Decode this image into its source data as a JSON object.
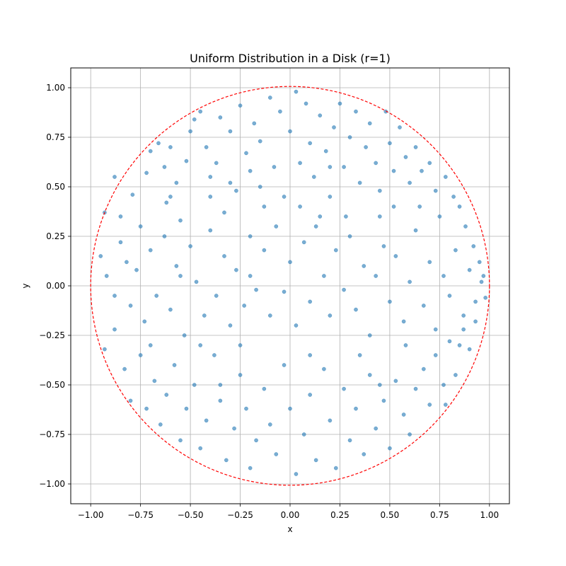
{
  "chart_data": {
    "type": "scatter",
    "title": "Uniform Distribution in a Disk (r=1)",
    "xlabel": "x",
    "ylabel": "y",
    "xlim": [
      -1.1,
      1.1
    ],
    "ylim": [
      -1.1,
      1.1
    ],
    "xticks": [
      -1.0,
      -0.75,
      -0.5,
      -0.25,
      0.0,
      0.25,
      0.5,
      0.75,
      1.0
    ],
    "yticks": [
      -1.0,
      -0.75,
      -0.5,
      -0.25,
      0.0,
      0.25,
      0.5,
      0.75,
      1.0
    ],
    "xtick_labels": [
      "−1.00",
      "−0.75",
      "−0.50",
      "−0.25",
      "0.00",
      "0.25",
      "0.50",
      "0.75",
      "1.00"
    ],
    "ytick_labels": [
      "−1.00",
      "−0.75",
      "−0.50",
      "−0.25",
      "0.00",
      "0.25",
      "0.50",
      "0.75",
      "1.00"
    ],
    "grid": true,
    "circle": {
      "radius": 1,
      "center": [
        0,
        0
      ],
      "style": "dashed",
      "color": "#ff0000"
    },
    "point_color": "#1f77b4",
    "point_alpha": 0.6,
    "series": [
      {
        "points": [
          [
            -0.93,
            0.37
          ],
          [
            -0.88,
            0.55
          ],
          [
            -0.82,
            0.12
          ],
          [
            -0.79,
            0.46
          ],
          [
            -0.75,
            0.3
          ],
          [
            -0.72,
            0.57
          ],
          [
            -0.7,
            0.68
          ],
          [
            -0.66,
            0.72
          ],
          [
            -0.63,
            0.6
          ],
          [
            -0.6,
            0.45
          ],
          [
            -0.57,
            0.52
          ],
          [
            -0.55,
            0.33
          ],
          [
            -0.52,
            0.63
          ],
          [
            -0.5,
            0.78
          ],
          [
            -0.48,
            0.84
          ],
          [
            -0.45,
            0.88
          ],
          [
            -0.42,
            0.7
          ],
          [
            -0.4,
            0.55
          ],
          [
            -0.37,
            0.62
          ],
          [
            -0.35,
            0.85
          ],
          [
            -0.33,
            0.37
          ],
          [
            -0.3,
            0.78
          ],
          [
            -0.27,
            0.48
          ],
          [
            -0.25,
            0.91
          ],
          [
            -0.22,
            0.67
          ],
          [
            -0.2,
            0.58
          ],
          [
            -0.18,
            0.82
          ],
          [
            -0.15,
            0.73
          ],
          [
            -0.13,
            0.4
          ],
          [
            -0.1,
            0.95
          ],
          [
            -0.08,
            0.6
          ],
          [
            -0.05,
            0.88
          ],
          [
            -0.03,
            0.45
          ],
          [
            0.0,
            0.78
          ],
          [
            0.03,
            0.98
          ],
          [
            0.05,
            0.62
          ],
          [
            0.08,
            0.92
          ],
          [
            0.1,
            0.72
          ],
          [
            0.12,
            0.55
          ],
          [
            0.15,
            0.86
          ],
          [
            0.18,
            0.68
          ],
          [
            0.2,
            0.45
          ],
          [
            0.22,
            0.8
          ],
          [
            0.25,
            0.92
          ],
          [
            0.27,
            0.6
          ],
          [
            0.3,
            0.75
          ],
          [
            0.33,
            0.88
          ],
          [
            0.35,
            0.52
          ],
          [
            0.38,
            0.7
          ],
          [
            0.4,
            0.82
          ],
          [
            0.43,
            0.62
          ],
          [
            0.45,
            0.48
          ],
          [
            0.48,
            0.88
          ],
          [
            0.5,
            0.72
          ],
          [
            0.52,
            0.58
          ],
          [
            0.55,
            0.8
          ],
          [
            0.58,
            0.65
          ],
          [
            0.6,
            0.52
          ],
          [
            0.63,
            0.7
          ],
          [
            0.66,
            0.58
          ],
          [
            0.7,
            0.62
          ],
          [
            0.73,
            0.48
          ],
          [
            0.75,
            0.35
          ],
          [
            0.78,
            0.55
          ],
          [
            0.82,
            0.45
          ],
          [
            0.85,
            0.4
          ],
          [
            0.88,
            0.3
          ],
          [
            0.92,
            0.2
          ],
          [
            0.95,
            0.12
          ],
          [
            0.97,
            0.05
          ],
          [
            -0.95,
            0.15
          ],
          [
            -0.92,
            0.05
          ],
          [
            -0.88,
            -0.05
          ],
          [
            -0.85,
            0.22
          ],
          [
            -0.8,
            -0.1
          ],
          [
            -0.77,
            0.08
          ],
          [
            -0.73,
            -0.18
          ],
          [
            -0.7,
            0.18
          ],
          [
            -0.67,
            -0.05
          ],
          [
            -0.63,
            0.25
          ],
          [
            -0.6,
            -0.12
          ],
          [
            -0.57,
            0.1
          ],
          [
            -0.53,
            -0.25
          ],
          [
            -0.5,
            0.2
          ],
          [
            -0.47,
            0.02
          ],
          [
            -0.43,
            -0.15
          ],
          [
            -0.4,
            0.28
          ],
          [
            -0.37,
            -0.05
          ],
          [
            -0.33,
            0.15
          ],
          [
            -0.3,
            -0.2
          ],
          [
            -0.27,
            0.08
          ],
          [
            -0.23,
            -0.1
          ],
          [
            -0.2,
            0.25
          ],
          [
            -0.17,
            -0.02
          ],
          [
            -0.13,
            0.18
          ],
          [
            -0.1,
            -0.15
          ],
          [
            -0.07,
            0.3
          ],
          [
            -0.03,
            -0.03
          ],
          [
            0.0,
            0.12
          ],
          [
            0.03,
            -0.2
          ],
          [
            0.07,
            0.22
          ],
          [
            0.1,
            -0.08
          ],
          [
            0.13,
            0.3
          ],
          [
            0.17,
            0.05
          ],
          [
            0.2,
            -0.15
          ],
          [
            0.23,
            0.18
          ],
          [
            0.27,
            -0.02
          ],
          [
            0.3,
            0.25
          ],
          [
            0.33,
            -0.12
          ],
          [
            0.37,
            0.1
          ],
          [
            0.4,
            -0.25
          ],
          [
            0.43,
            0.05
          ],
          [
            0.47,
            0.2
          ],
          [
            0.5,
            -0.08
          ],
          [
            0.53,
            0.15
          ],
          [
            0.57,
            -0.18
          ],
          [
            0.6,
            0.02
          ],
          [
            0.63,
            0.28
          ],
          [
            0.67,
            -0.1
          ],
          [
            0.7,
            0.12
          ],
          [
            0.73,
            -0.22
          ],
          [
            0.77,
            0.05
          ],
          [
            0.8,
            -0.05
          ],
          [
            0.83,
            0.18
          ],
          [
            0.87,
            -0.15
          ],
          [
            0.9,
            0.08
          ],
          [
            0.93,
            -0.08
          ],
          [
            0.96,
            0.02
          ],
          [
            0.98,
            -0.06
          ],
          [
            0.85,
            -0.3
          ],
          [
            -0.93,
            -0.32
          ],
          [
            -0.88,
            -0.22
          ],
          [
            -0.83,
            -0.42
          ],
          [
            -0.8,
            -0.58
          ],
          [
            -0.75,
            -0.35
          ],
          [
            -0.72,
            -0.62
          ],
          [
            -0.68,
            -0.48
          ],
          [
            -0.65,
            -0.7
          ],
          [
            -0.62,
            -0.55
          ],
          [
            -0.58,
            -0.4
          ],
          [
            -0.55,
            -0.78
          ],
          [
            -0.52,
            -0.62
          ],
          [
            -0.48,
            -0.5
          ],
          [
            -0.45,
            -0.82
          ],
          [
            -0.42,
            -0.68
          ],
          [
            -0.38,
            -0.35
          ],
          [
            -0.35,
            -0.58
          ],
          [
            -0.32,
            -0.88
          ],
          [
            -0.28,
            -0.72
          ],
          [
            -0.25,
            -0.45
          ],
          [
            -0.22,
            -0.62
          ],
          [
            -0.2,
            -0.92
          ],
          [
            -0.17,
            -0.78
          ],
          [
            -0.13,
            -0.52
          ],
          [
            -0.1,
            -0.7
          ],
          [
            -0.07,
            -0.85
          ],
          [
            -0.03,
            -0.4
          ],
          [
            0.0,
            -0.62
          ],
          [
            0.03,
            -0.95
          ],
          [
            0.07,
            -0.75
          ],
          [
            0.1,
            -0.55
          ],
          [
            0.13,
            -0.88
          ],
          [
            0.17,
            -0.42
          ],
          [
            0.2,
            -0.68
          ],
          [
            0.23,
            -0.92
          ],
          [
            0.27,
            -0.52
          ],
          [
            0.3,
            -0.78
          ],
          [
            0.33,
            -0.62
          ],
          [
            0.37,
            -0.85
          ],
          [
            0.4,
            -0.45
          ],
          [
            0.43,
            -0.72
          ],
          [
            0.47,
            -0.58
          ],
          [
            0.5,
            -0.82
          ],
          [
            0.53,
            -0.48
          ],
          [
            0.57,
            -0.65
          ],
          [
            0.6,
            -0.75
          ],
          [
            0.63,
            -0.52
          ],
          [
            0.67,
            -0.42
          ],
          [
            0.7,
            -0.6
          ],
          [
            0.73,
            -0.35
          ],
          [
            0.77,
            -0.5
          ],
          [
            0.8,
            -0.28
          ],
          [
            0.83,
            -0.45
          ],
          [
            0.87,
            -0.22
          ],
          [
            0.9,
            -0.32
          ],
          [
            0.93,
            -0.18
          ],
          [
            0.78,
            -0.6
          ],
          [
            -0.3,
            0.52
          ],
          [
            -0.55,
            0.05
          ],
          [
            0.15,
            0.35
          ],
          [
            -0.85,
            0.35
          ],
          [
            -0.6,
            0.7
          ],
          [
            -0.4,
            0.45
          ],
          [
            -0.15,
            0.5
          ],
          [
            0.05,
            0.4
          ],
          [
            0.28,
            0.35
          ],
          [
            0.45,
            0.35
          ],
          [
            0.65,
            0.4
          ],
          [
            -0.7,
            -0.3
          ],
          [
            -0.45,
            -0.3
          ],
          [
            -0.25,
            -0.3
          ],
          [
            0.1,
            -0.35
          ],
          [
            0.35,
            -0.35
          ],
          [
            0.58,
            -0.3
          ],
          [
            -0.2,
            0.05
          ],
          [
            0.2,
            0.6
          ],
          [
            -0.62,
            0.42
          ],
          [
            0.52,
            0.4
          ],
          [
            -0.35,
            -0.5
          ],
          [
            0.45,
            -0.5
          ]
        ]
      }
    ]
  }
}
